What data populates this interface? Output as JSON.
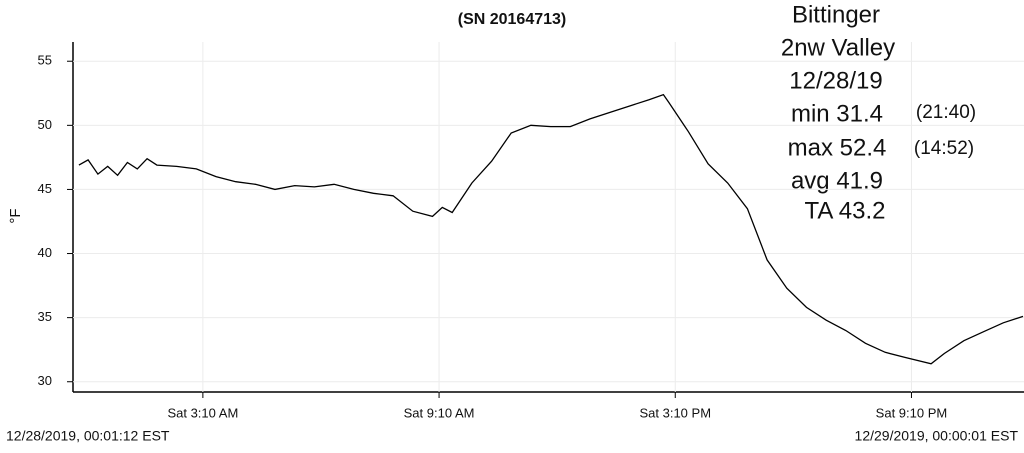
{
  "chart_data": {
    "type": "line",
    "title": "(SN 20164713)",
    "y_label": "°F",
    "annotations": [
      "Bittinger",
      "2nw Valley",
      "12/28/19",
      "min 31.4",
      "(21:40)",
      "max 52.4",
      "(14:52)",
      "avg 41.9",
      "TA 43.2"
    ],
    "start_label": "12/28/2019, 00:01:12 EST",
    "end_label": "12/29/2019, 00:00:01 EST",
    "x": [
      "2019-12-28 00:01",
      "2019-12-28 00:15",
      "2019-12-28 00:30",
      "2019-12-28 00:45",
      "2019-12-28 01:00",
      "2019-12-28 01:15",
      "2019-12-28 01:30",
      "2019-12-28 01:45",
      "2019-12-28 02:00",
      "2019-12-28 02:30",
      "2019-12-28 03:00",
      "2019-12-28 03:30",
      "2019-12-28 04:00",
      "2019-12-28 04:30",
      "2019-12-28 05:00",
      "2019-12-28 05:30",
      "2019-12-28 06:00",
      "2019-12-28 06:30",
      "2019-12-28 07:00",
      "2019-12-28 07:30",
      "2019-12-28 08:00",
      "2019-12-28 08:30",
      "2019-12-28 09:00",
      "2019-12-28 09:15",
      "2019-12-28 09:30",
      "2019-12-28 10:00",
      "2019-12-28 10:30",
      "2019-12-28 11:00",
      "2019-12-28 11:30",
      "2019-12-28 12:00",
      "2019-12-28 12:30",
      "2019-12-28 13:00",
      "2019-12-28 13:30",
      "2019-12-28 14:00",
      "2019-12-28 14:30",
      "2019-12-28 14:52",
      "2019-12-28 15:00",
      "2019-12-28 15:30",
      "2019-12-28 16:00",
      "2019-12-28 16:30",
      "2019-12-28 17:00",
      "2019-12-28 17:30",
      "2019-12-28 18:00",
      "2019-12-28 18:30",
      "2019-12-28 19:00",
      "2019-12-28 19:30",
      "2019-12-28 20:00",
      "2019-12-28 20:30",
      "2019-12-28 21:00",
      "2019-12-28 21:40",
      "2019-12-28 22:00",
      "2019-12-28 22:30",
      "2019-12-28 23:00",
      "2019-12-28 23:30",
      "2019-12-29 00:00"
    ],
    "values": [
      46.9,
      47.3,
      46.2,
      46.8,
      46.1,
      47.1,
      46.6,
      47.4,
      46.9,
      46.8,
      46.6,
      46.0,
      45.6,
      45.4,
      45.0,
      45.3,
      45.2,
      45.4,
      45.0,
      44.7,
      44.5,
      43.3,
      42.9,
      43.6,
      43.2,
      45.5,
      47.2,
      49.4,
      50.0,
      49.9,
      49.9,
      50.5,
      51.0,
      51.5,
      52.0,
      52.4,
      51.8,
      49.5,
      47.0,
      45.5,
      43.5,
      39.5,
      37.3,
      35.8,
      34.8,
      34.0,
      33.0,
      32.3,
      31.9,
      31.4,
      32.2,
      33.2,
      33.9,
      34.6,
      35.1
    ],
    "color": "#000000",
    "xlim": [
      "2019-12-28 00:01:12",
      "2019-12-29 00:00:01"
    ],
    "xticks": [
      {
        "value": "2019-12-28 03:10",
        "label": "Sat 3:10 AM"
      },
      {
        "value": "2019-12-28 09:10",
        "label": "Sat 9:10 AM"
      },
      {
        "value": "2019-12-28 15:10",
        "label": "Sat 3:10 PM"
      },
      {
        "value": "2019-12-28 21:10",
        "label": "Sat 9:10 PM"
      }
    ],
    "ylim": [
      29.2,
      56.5
    ],
    "yticks": [
      30,
      35,
      40,
      45,
      50,
      55
    ],
    "grid": true
  }
}
